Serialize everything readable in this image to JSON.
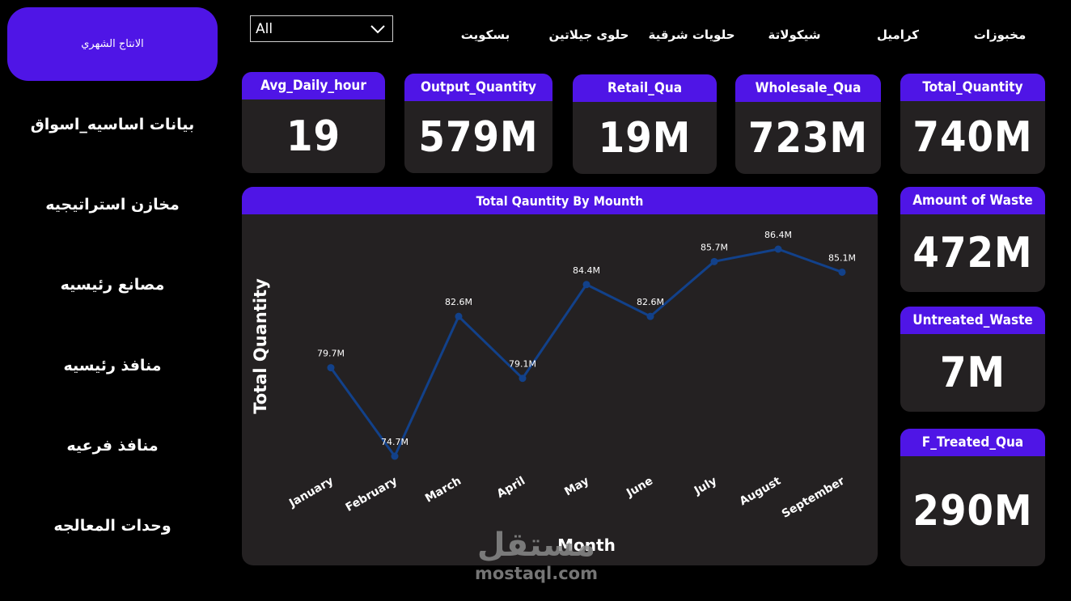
{
  "sidebar": {
    "active_label": "الانتاج الشهري",
    "items": [
      {
        "label": "بيانات اساسيه_اسواق"
      },
      {
        "label": "مخازن استراتيجيه"
      },
      {
        "label": "مصانع رئيسيه"
      },
      {
        "label": "منافذ رئيسيه"
      },
      {
        "label": "منافذ فرعيه"
      },
      {
        "label": "وحدات المعالجه"
      }
    ]
  },
  "filter": {
    "selected": "All",
    "icon": "chevron-down-icon"
  },
  "categories": [
    {
      "label": "بسكويت"
    },
    {
      "label": "حلوى جيلاتين"
    },
    {
      "label": "حلويات شرقية"
    },
    {
      "label": "شيكولاتة"
    },
    {
      "label": "كراميل"
    },
    {
      "label": "مخبوزات"
    }
  ],
  "kpis": {
    "avg_daily_hour": {
      "title": "Avg_Daily_hour",
      "value": "19"
    },
    "output_quantity": {
      "title": "Output_Quantity",
      "value": "579M"
    },
    "retail_qua": {
      "title": "Retail_Qua",
      "value": "19M"
    },
    "wholesale_qua": {
      "title": "Wholesale_Qua",
      "value": "723M"
    },
    "total_quantity": {
      "title": "Total_Quantity",
      "value": "740M"
    },
    "amount_of_waste": {
      "title": "Amount of Waste",
      "value": "472M"
    },
    "untreated_waste": {
      "title": "Untreated_Waste",
      "value": "7M"
    },
    "f_treated_qua": {
      "title": "F_Treated_Qua",
      "value": "290M"
    }
  },
  "chart_data": {
    "type": "line",
    "title": "Total Qauntity By Mounth",
    "xlabel": "Month",
    "ylabel": "Total Quantity",
    "categories": [
      "January",
      "February",
      "March",
      "April",
      "May",
      "June",
      "July",
      "August",
      "September"
    ],
    "values": [
      79.7,
      74.7,
      82.6,
      79.1,
      84.4,
      82.6,
      85.7,
      86.4,
      85.1
    ],
    "data_labels": [
      "79.7M",
      "74.7M",
      "82.6M",
      "79.1M",
      "84.4M",
      "82.6M",
      "85.7M",
      "86.4M",
      "85.1M"
    ],
    "line_color": "#12418a",
    "grid": false
  },
  "watermark": {
    "arabic": "مستقل",
    "latin": "mostaql.com"
  },
  "colors": {
    "accent": "#4f15e6",
    "card_bg": "#242122",
    "page_bg": "#000000"
  }
}
